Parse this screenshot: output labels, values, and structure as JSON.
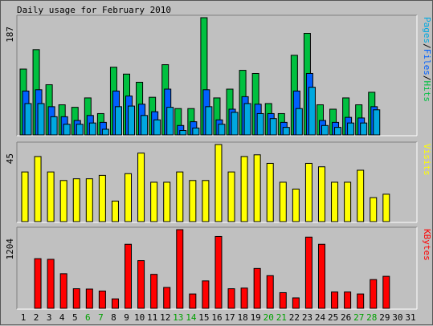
{
  "chart_data": [
    {
      "type": "bar",
      "title": "Daily usage for February 2010",
      "ymax_label": "187",
      "categories": [
        "1",
        "2",
        "3",
        "4",
        "5",
        "6",
        "7",
        "8",
        "9",
        "10",
        "11",
        "12",
        "13",
        "14",
        "15",
        "16",
        "17",
        "18",
        "19",
        "20",
        "21",
        "22",
        "23",
        "24",
        "25",
        "26",
        "27",
        "28",
        "29",
        "30",
        "31"
      ],
      "weekend_days": [
        "6",
        "7",
        "13",
        "14",
        "20",
        "21",
        "27",
        "28"
      ],
      "ylim": [
        0,
        187
      ],
      "legend": [
        "Pages",
        "/",
        "Files",
        "/",
        "Hits"
      ],
      "series": [
        {
          "name": "Hits",
          "color": "#00c040",
          "values": [
            105,
            136,
            80,
            48,
            44,
            59,
            34,
            108,
            97,
            84,
            60,
            112,
            42,
            42,
            187,
            59,
            73,
            103,
            98,
            50,
            34,
            127,
            162,
            48,
            41,
            59,
            48,
            68,
            0,
            0,
            0
          ]
        },
        {
          "name": "Files",
          "color": "#0060ff",
          "values": [
            70,
            72,
            45,
            29,
            23,
            31,
            20,
            70,
            62,
            49,
            37,
            73,
            15,
            21,
            72,
            24,
            41,
            61,
            49,
            34,
            20,
            70,
            98,
            23,
            20,
            28,
            27,
            45,
            0,
            0,
            0
          ]
        },
        {
          "name": "Pages",
          "color": "#00a8e0",
          "values": [
            50,
            50,
            29,
            17,
            17,
            19,
            9,
            45,
            46,
            31,
            24,
            44,
            7,
            11,
            45,
            17,
            36,
            50,
            34,
            26,
            12,
            42,
            76,
            15,
            12,
            19,
            19,
            40,
            0,
            0,
            0
          ]
        }
      ]
    },
    {
      "type": "bar",
      "ymax_label": "45",
      "ylim": [
        0,
        45
      ],
      "legend": [
        "Visits"
      ],
      "series": [
        {
          "name": "Visits",
          "color": "#ffff00",
          "values": [
            29,
            38,
            29,
            24,
            25,
            25,
            27,
            12,
            28,
            40,
            23,
            23,
            29,
            24,
            24,
            45,
            29,
            38,
            39,
            34,
            23,
            19,
            34,
            32,
            23,
            23,
            30,
            14,
            16,
            0,
            0
          ]
        }
      ]
    },
    {
      "type": "bar",
      "ymax_label": "1204",
      "ylim": [
        0,
        1204
      ],
      "legend": [
        "KBytes"
      ],
      "series": [
        {
          "name": "KBytes",
          "color": "#ff0000",
          "values": [
            0,
            760,
            750,
            530,
            300,
            295,
            265,
            145,
            980,
            730,
            520,
            320,
            1204,
            220,
            420,
            1100,
            300,
            310,
            610,
            500,
            240,
            160,
            1090,
            980,
            250,
            250,
            220,
            440,
            490,
            0,
            0
          ]
        }
      ]
    }
  ]
}
